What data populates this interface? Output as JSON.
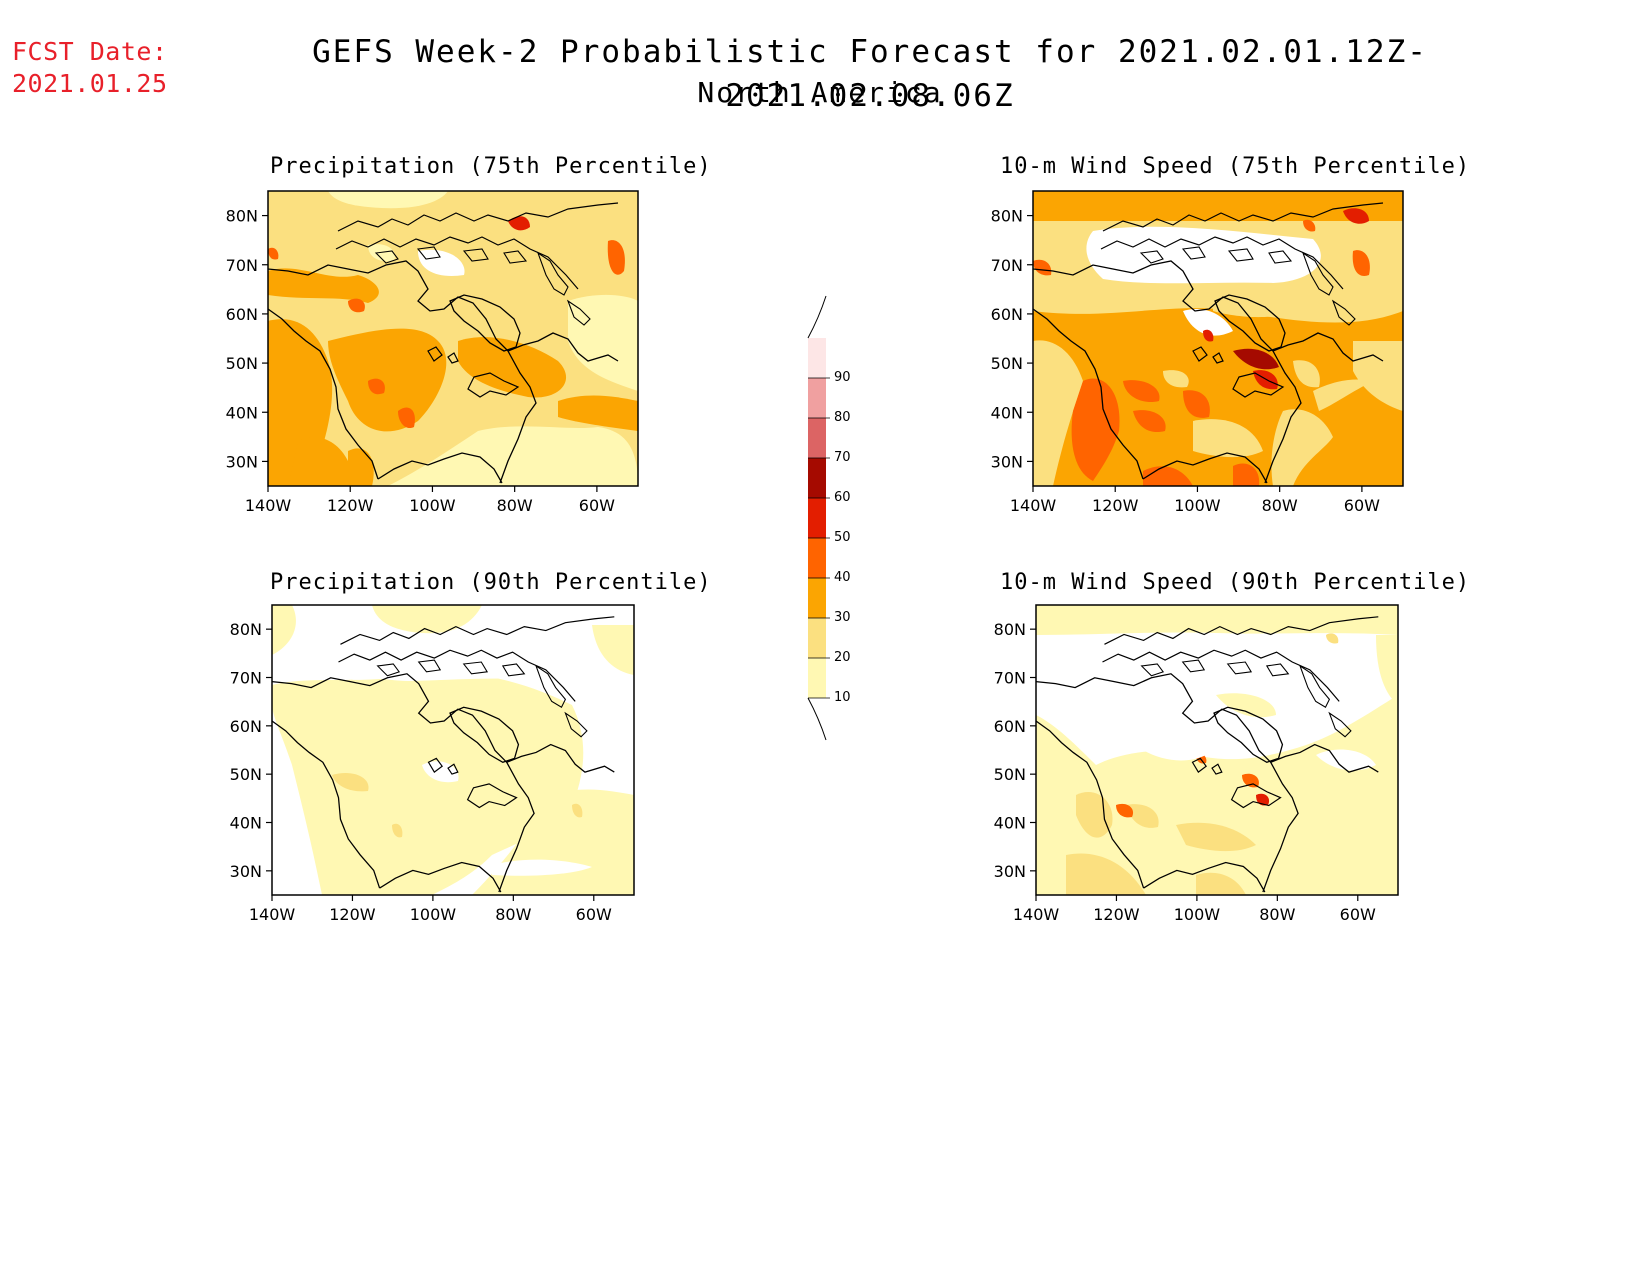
{
  "header": {
    "fcst_label": "FCST Date:",
    "fcst_date": "2021.01.25",
    "title": "GEFS Week-2 Probabilistic Forecast for 2021.02.01.12Z-2021.02.08.06Z",
    "subtitle": "North America"
  },
  "panels": [
    {
      "title": "Precipitation (75th Percentile)"
    },
    {
      "title": "10-m Wind Speed (75th Percentile)"
    },
    {
      "title": "Precipitation (90th Percentile)"
    },
    {
      "title": "10-m Wind Speed (90th Percentile)"
    }
  ],
  "axes": {
    "lat_labels": [
      "80N",
      "70N",
      "60N",
      "50N",
      "40N",
      "30N"
    ],
    "lon_labels": [
      "140W",
      "120W",
      "100W",
      "80W",
      "60W"
    ],
    "lat_values": [
      80,
      70,
      60,
      50,
      40,
      30
    ],
    "lon_values": [
      -140,
      -120,
      -100,
      -80,
      -60
    ],
    "lat_range": [
      25,
      85
    ],
    "lon_range": [
      -140,
      -50
    ]
  },
  "colorbar": {
    "levels": [
      "10",
      "20",
      "30",
      "40",
      "50",
      "60",
      "70",
      "80",
      "90"
    ],
    "colors": [
      "#fff8b3",
      "#fbe080",
      "#fba502",
      "#ff6400",
      "#e31e00",
      "#a50a00",
      "#dc6464",
      "#f0a0a0",
      "#fde6e6"
    ]
  }
}
